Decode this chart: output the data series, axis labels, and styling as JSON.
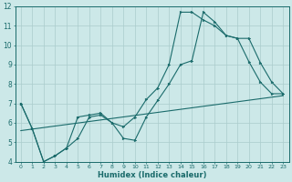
{
  "xlabel": "Humidex (Indice chaleur)",
  "background_color": "#cce8e8",
  "line_color": "#1a6b6b",
  "grid_color": "#aacccc",
  "xlim": [
    -0.5,
    23.5
  ],
  "ylim": [
    4,
    12
  ],
  "xtick_values": [
    0,
    1,
    2,
    3,
    4,
    5,
    6,
    7,
    8,
    9,
    10,
    11,
    12,
    13,
    14,
    15,
    16,
    17,
    18,
    19,
    20,
    21,
    22,
    23
  ],
  "ytick_values": [
    4,
    5,
    6,
    7,
    8,
    9,
    10,
    11,
    12
  ],
  "series1": {
    "x": [
      0,
      1,
      2,
      3,
      4,
      5,
      6,
      7,
      8,
      9,
      10,
      11,
      12,
      13,
      14,
      15,
      16,
      17,
      18,
      19,
      20,
      21,
      22,
      23
    ],
    "y": [
      7.0,
      5.7,
      4.0,
      4.3,
      4.7,
      6.3,
      6.4,
      6.5,
      6.0,
      5.8,
      6.3,
      7.2,
      7.8,
      9.0,
      11.7,
      11.7,
      11.3,
      11.0,
      10.5,
      10.35,
      9.15,
      8.1,
      7.5,
      7.5
    ]
  },
  "series2": {
    "x": [
      0,
      1,
      2,
      3,
      4,
      5,
      6,
      7,
      8,
      9,
      10,
      11,
      12,
      13,
      14,
      15,
      16,
      17,
      18,
      19,
      20,
      21,
      22,
      23
    ],
    "y": [
      7.0,
      5.7,
      4.0,
      4.3,
      4.7,
      5.2,
      6.3,
      6.4,
      6.0,
      5.2,
      5.1,
      6.3,
      7.15,
      8.0,
      9.0,
      9.2,
      11.7,
      11.2,
      10.5,
      10.35,
      10.35,
      9.1,
      8.1,
      7.5
    ]
  },
  "series3": {
    "x": [
      0,
      23
    ],
    "y": [
      5.6,
      7.4
    ]
  }
}
